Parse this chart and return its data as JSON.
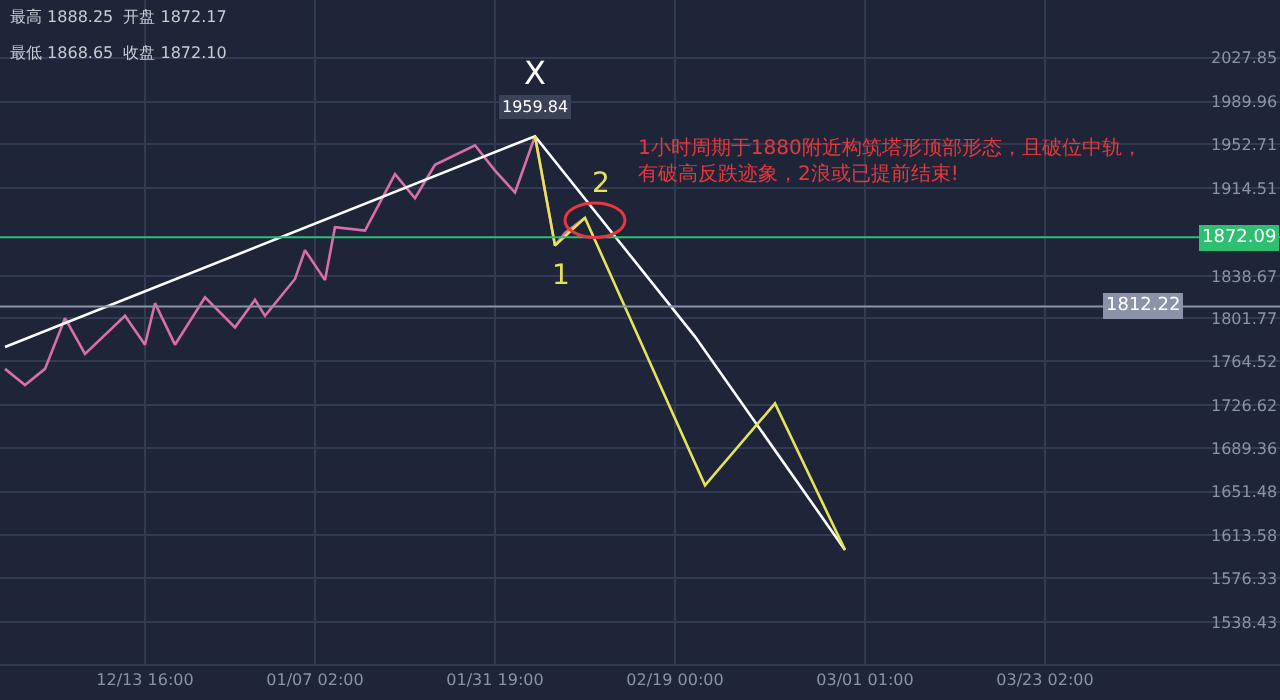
{
  "chart_data": {
    "type": "line",
    "grid": true,
    "marker": "none",
    "categories": [
      null,
      null,
      null,
      null,
      null,
      null,
      null,
      null,
      null,
      null,
      null,
      null,
      null,
      null,
      "12/13 16:00",
      null,
      null,
      null,
      null,
      null,
      null,
      null,
      null,
      null,
      null,
      null,
      null,
      null,
      null,
      null,
      null,
      "01/07 02:00",
      null,
      null,
      null,
      null,
      null,
      null,
      null,
      null,
      null,
      null,
      null,
      null,
      null,
      null,
      null,
      null,
      null,
      "01/31 19:00",
      null,
      null,
      null,
      null,
      null,
      null,
      null,
      null,
      null,
      null,
      null,
      null,
      null,
      null,
      null,
      null,
      null,
      "02/19 00:00",
      null,
      null,
      null,
      null,
      null,
      null,
      null,
      null,
      null,
      null,
      null,
      null,
      null,
      null,
      null,
      null,
      null,
      null,
      "03/01 01:00",
      null,
      null,
      null,
      null,
      null,
      null,
      null,
      null,
      null,
      null,
      null,
      null,
      null,
      null,
      null,
      null,
      null,
      "03/23 02:00",
      null,
      null,
      null,
      null,
      null,
      null,
      null,
      null,
      null,
      null,
      null,
      null,
      null,
      null,
      null,
      null,
      null,
      null,
      null,
      null,
      null,
      null,
      null
    ],
    "ylim": [
      1502,
      2078
    ],
    "yticks": [
      1538.43,
      1576.33,
      1613.58,
      1651.48,
      1689.36,
      1726.62,
      1764.52,
      1801.77,
      1838.67,
      1914.51,
      1952.71,
      1989.96,
      2027.85
    ],
    "series": [
      {
        "color": "#d96fa8",
        "values": [
          1758,
          null,
          1744,
          null,
          1758,
          null,
          1802,
          null,
          1771,
          null,
          null,
          null,
          1804,
          null,
          1779,
          1815,
          null,
          1779,
          null,
          null,
          1820,
          null,
          null,
          1794,
          null,
          1818,
          1804,
          null,
          null,
          1836,
          1861,
          null,
          1835,
          1881,
          null,
          null,
          1878,
          null,
          null,
          1927,
          null,
          1906,
          null,
          1935,
          null,
          null,
          null,
          1952,
          null,
          1930,
          null,
          1911,
          null,
          1959.84,
          null,
          1865,
          1876,
          null,
          1889,
          null,
          null,
          null,
          null,
          null,
          null,
          null,
          null,
          null,
          null,
          null,
          null,
          null,
          null,
          null,
          null,
          null,
          null,
          null,
          null,
          null,
          null,
          null,
          null,
          null,
          null,
          null,
          null,
          null,
          null,
          null,
          null,
          null,
          null,
          null,
          null,
          null,
          null,
          null,
          null,
          null,
          null,
          null,
          null,
          null,
          null,
          null,
          null,
          null,
          null,
          null,
          null,
          null,
          null,
          null,
          null,
          null,
          null,
          null,
          null,
          null,
          null,
          null,
          null,
          null,
          null,
          null,
          null,
          null
        ]
      },
      {
        "color": "#ffffff",
        "values": [
          1777,
          null,
          null,
          null,
          null,
          null,
          null,
          null,
          null,
          null,
          null,
          null,
          null,
          null,
          null,
          null,
          null,
          null,
          null,
          null,
          null,
          null,
          null,
          null,
          null,
          null,
          null,
          null,
          null,
          null,
          null,
          null,
          null,
          null,
          null,
          null,
          null,
          null,
          null,
          null,
          null,
          null,
          null,
          null,
          null,
          null,
          null,
          null,
          null,
          null,
          null,
          null,
          null,
          1959.84,
          null,
          null,
          null,
          null,
          null,
          null,
          null,
          null,
          null,
          null,
          null,
          null,
          null,
          null,
          null,
          1786,
          null,
          null,
          null,
          null,
          null,
          null,
          null,
          null,
          null,
          null,
          null,
          null,
          null,
          null,
          1601,
          null,
          null,
          null,
          null,
          null,
          null,
          null,
          null,
          null,
          null,
          null,
          null,
          null,
          null,
          null,
          null,
          null,
          null,
          null,
          null,
          null,
          null,
          null,
          null,
          null,
          null,
          null,
          null,
          null,
          null,
          null,
          null,
          null,
          null,
          null,
          null,
          null,
          null,
          null,
          null,
          null,
          null,
          null
        ]
      },
      {
        "color": "#e6e35a",
        "values": [
          null,
          null,
          null,
          null,
          null,
          null,
          null,
          null,
          null,
          null,
          null,
          null,
          null,
          null,
          null,
          null,
          null,
          null,
          null,
          null,
          null,
          null,
          null,
          null,
          null,
          null,
          null,
          null,
          null,
          null,
          null,
          null,
          null,
          null,
          null,
          null,
          null,
          null,
          null,
          null,
          null,
          null,
          null,
          null,
          null,
          null,
          null,
          null,
          null,
          null,
          null,
          null,
          null,
          1959.84,
          null,
          1865,
          null,
          null,
          1889,
          null,
          null,
          null,
          null,
          null,
          null,
          null,
          null,
          null,
          null,
          null,
          1657,
          null,
          null,
          null,
          null,
          null,
          null,
          1728,
          null,
          null,
          null,
          null,
          null,
          null,
          1601,
          null,
          null,
          null,
          null,
          null,
          null,
          null,
          null,
          null,
          null,
          null,
          null,
          null,
          null,
          null,
          null,
          null,
          null,
          null,
          null,
          null,
          null,
          null,
          null,
          null,
          null,
          null,
          null,
          null,
          null,
          null,
          null,
          null,
          null,
          null,
          null,
          null,
          null,
          null,
          null,
          null,
          null,
          null
        ]
      }
    ],
    "ref_lines": [
      {
        "axis": "y",
        "value": 1872.09,
        "label": "1872.09",
        "color": "#2fbf71"
      },
      {
        "axis": "y",
        "value": 1812.22,
        "label": "1812.22",
        "color": "#8a93a8"
      }
    ],
    "annotations": [
      "X",
      "1959.84",
      "1",
      "2",
      "1小时周期于1880附近构筑塔形顶部形态，且破位中轨，有破高反跌迹象，2浪或已提前结束!",
      "最高 1888.25  开盘 1872.17",
      "最低 1868.65  收盘 1872.10"
    ]
  }
}
